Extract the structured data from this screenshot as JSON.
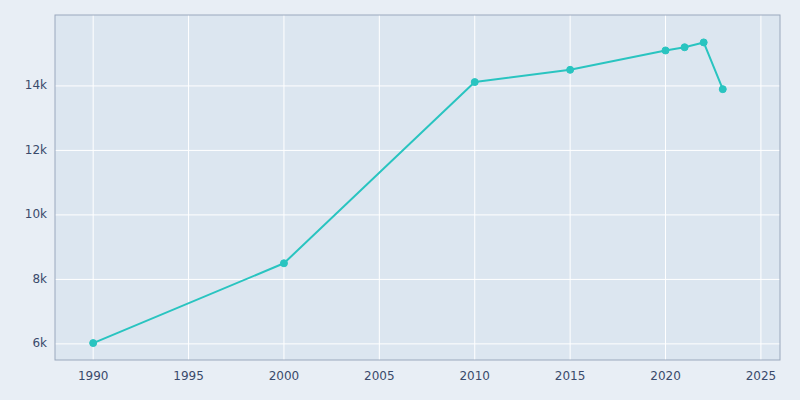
{
  "chart_data": {
    "type": "line",
    "x": [
      1990,
      2000,
      2010,
      2015,
      2020,
      2021,
      2022,
      2023
    ],
    "values": [
      6025,
      8500,
      14120,
      14500,
      15100,
      15200,
      15350,
      13900
    ],
    "color": "#29c4c0",
    "marker": "circle",
    "xlim": [
      1988,
      2026
    ],
    "ylim": [
      5500,
      16200
    ],
    "xticks": [
      1990,
      1995,
      2000,
      2005,
      2010,
      2015,
      2020,
      2025
    ],
    "yticks": [
      {
        "value": 6000,
        "label": "6k"
      },
      {
        "value": 8000,
        "label": "8k"
      },
      {
        "value": 10000,
        "label": "10k"
      },
      {
        "value": 12000,
        "label": "12k"
      },
      {
        "value": 14000,
        "label": "14k"
      }
    ],
    "grid": true
  }
}
